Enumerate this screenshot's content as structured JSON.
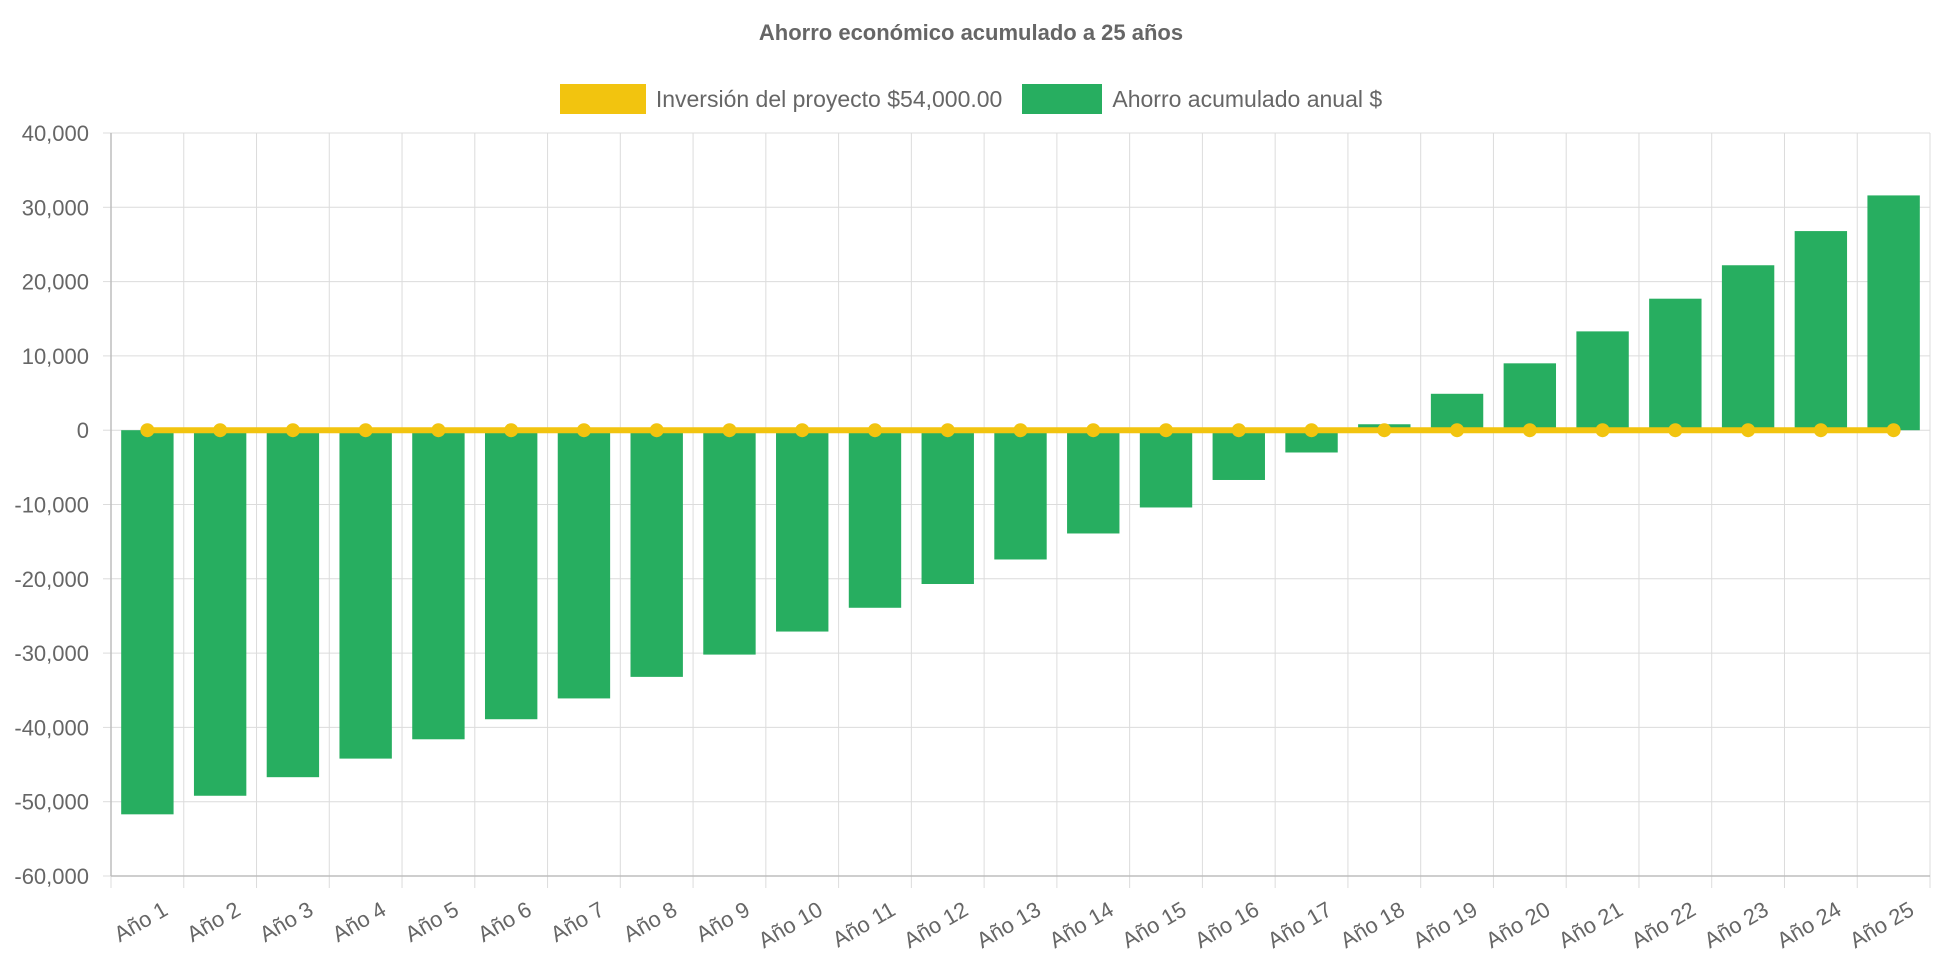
{
  "chart_data": {
    "type": "bar",
    "title": "Ahorro económico acumulado a 25 años",
    "categories": [
      "Año 1",
      "Año 2",
      "Año 3",
      "Año 4",
      "Año 5",
      "Año 6",
      "Año 7",
      "Año 8",
      "Año 9",
      "Año 10",
      "Año 11",
      "Año 12",
      "Año 13",
      "Año 14",
      "Año 15",
      "Año 16",
      "Año 17",
      "Año 18",
      "Año 19",
      "Año 20",
      "Año 21",
      "Año 22",
      "Año 23",
      "Año 24",
      "Año 25"
    ],
    "series": [
      {
        "name": "Inversión del proyecto $54,000.00",
        "type": "line",
        "color": "#f2c40f",
        "values": [
          0,
          0,
          0,
          0,
          0,
          0,
          0,
          0,
          0,
          0,
          0,
          0,
          0,
          0,
          0,
          0,
          0,
          0,
          0,
          0,
          0,
          0,
          0,
          0,
          0
        ]
      },
      {
        "name": "Ahorro acumulado anual $",
        "type": "bar",
        "color": "#27ae60",
        "values": [
          -51700,
          -49200,
          -46700,
          -44200,
          -41600,
          -38900,
          -36100,
          -33200,
          -30200,
          -27100,
          -23900,
          -20700,
          -17400,
          -13900,
          -10400,
          -6700,
          -3000,
          800,
          4900,
          9000,
          13300,
          17700,
          22200,
          26800,
          31600
        ]
      }
    ],
    "xlabel": "",
    "ylabel": "",
    "ylim": [
      -60000,
      40000
    ],
    "y_ticks": [
      "40,000",
      "30,000",
      "20,000",
      "10,000",
      "0",
      "-10,000",
      "-20,000",
      "-30,000",
      "-40,000",
      "-50,000",
      "-60,000"
    ],
    "y_tick_values": [
      40000,
      30000,
      20000,
      10000,
      0,
      -10000,
      -20000,
      -30000,
      -40000,
      -50000,
      -60000
    ],
    "grid": true,
    "legend_position": "top"
  }
}
